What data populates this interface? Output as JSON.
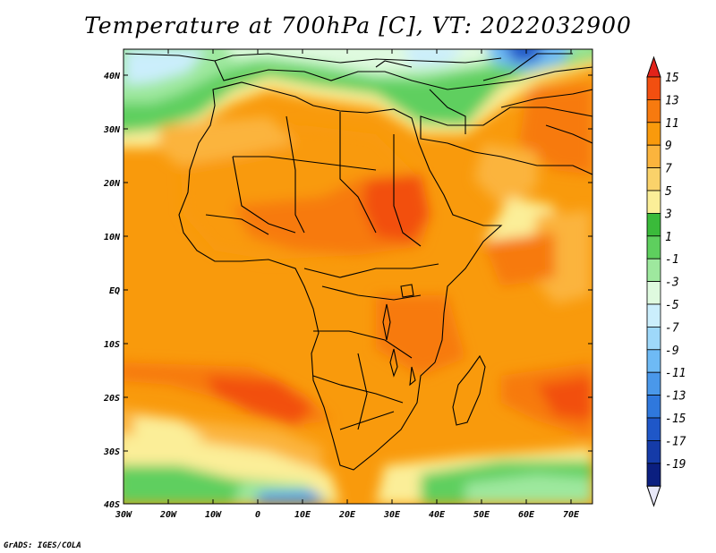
{
  "title": "Temperature at 700hPa [C], VT: 2022032900",
  "credit": "GrADS: IGES/COLA",
  "axes": {
    "lon_labels": [
      "30W",
      "20W",
      "10W",
      "0",
      "10E",
      "20E",
      "30E",
      "40E",
      "50E",
      "60E",
      "70E"
    ],
    "lat_labels": [
      "40N",
      "30N",
      "20N",
      "10N",
      "EQ",
      "10S",
      "20S",
      "30S",
      "40S"
    ]
  },
  "colorbar": {
    "labels": [
      "15",
      "13",
      "11",
      "9",
      "7",
      "5",
      "3",
      "1",
      "-1",
      "-3",
      "-5",
      "-7",
      "-9",
      "-11",
      "-13",
      "-15",
      "-17",
      "-19"
    ],
    "colors": [
      "#e2231a",
      "#f24f10",
      "#f77a0f",
      "#f99a0c",
      "#fbb43d",
      "#fad26a",
      "#fbee98",
      "#3aba3a",
      "#5ecf5e",
      "#9ee89e",
      "#dffadf",
      "#cbeefc",
      "#9ed8fa",
      "#6ebaf5",
      "#4a98ea",
      "#2f78dd",
      "#1f57c8",
      "#153ba8",
      "#0b1f80"
    ],
    "top_color": "#e2231a",
    "bottom_color": "#e8e8f8"
  }
}
